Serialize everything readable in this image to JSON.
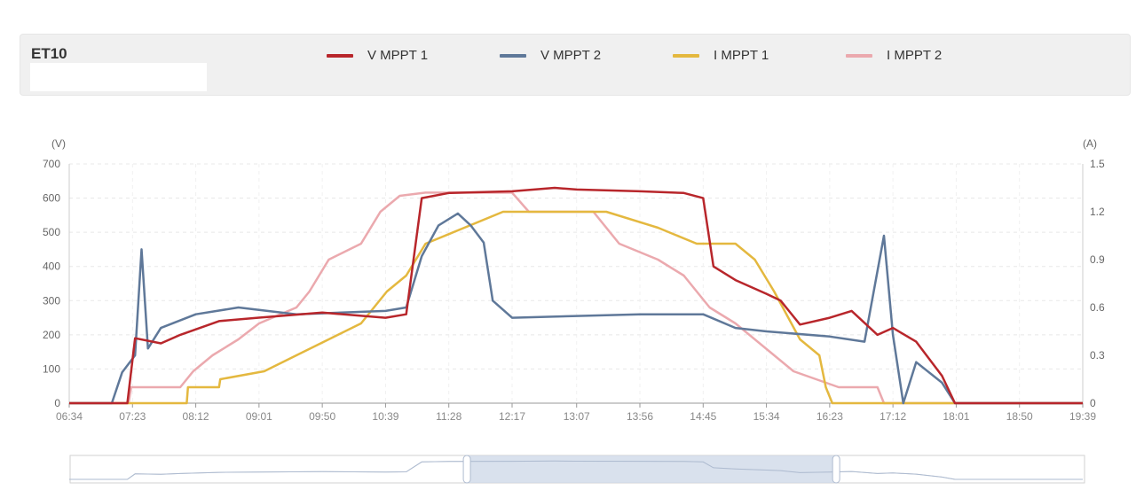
{
  "header": {
    "title": "ET10",
    "legend": [
      {
        "label": "V MPPT 1",
        "color": "#b8262b"
      },
      {
        "label": "V MPPT 2",
        "color": "#5f7899"
      },
      {
        "label": "I MPPT 1",
        "color": "#e4b83f"
      },
      {
        "label": "I MPPT 2",
        "color": "#eba9ae"
      }
    ]
  },
  "chart_data": {
    "type": "line",
    "x": [
      "06:34",
      "07:23",
      "08:12",
      "09:01",
      "09:50",
      "10:39",
      "11:28",
      "12:17",
      "13:07",
      "13:56",
      "14:45",
      "15:34",
      "16:23",
      "17:12",
      "18:01",
      "18:50",
      "19:39"
    ],
    "xlabel": "",
    "y_left": {
      "unit": "(V)",
      "ticks": [
        "0",
        "100",
        "200",
        "300",
        "400",
        "500",
        "600",
        "700"
      ],
      "range": [
        0,
        700
      ]
    },
    "y_right": {
      "unit": "(A)",
      "ticks": [
        "0",
        "0.3",
        "0.6",
        "0.9",
        "1.2",
        "1.5"
      ],
      "range": [
        0,
        1.5
      ]
    },
    "grid": true,
    "legend_position": "top",
    "series": [
      {
        "name": "V MPPT 1",
        "axis": "left",
        "color": "#b8262b",
        "points": [
          [
            "06:34",
            0
          ],
          [
            "07:19",
            0
          ],
          [
            "07:25",
            190
          ],
          [
            "07:45",
            175
          ],
          [
            "08:00",
            200
          ],
          [
            "08:30",
            240
          ],
          [
            "09:00",
            250
          ],
          [
            "09:50",
            265
          ],
          [
            "10:39",
            250
          ],
          [
            "10:55",
            260
          ],
          [
            "11:07",
            600
          ],
          [
            "11:28",
            615
          ],
          [
            "12:17",
            620
          ],
          [
            "12:50",
            630
          ],
          [
            "13:07",
            625
          ],
          [
            "13:56",
            620
          ],
          [
            "14:30",
            615
          ],
          [
            "14:45",
            600
          ],
          [
            "14:53",
            400
          ],
          [
            "15:10",
            360
          ],
          [
            "15:34",
            320
          ],
          [
            "15:45",
            300
          ],
          [
            "16:00",
            230
          ],
          [
            "16:23",
            250
          ],
          [
            "16:40",
            270
          ],
          [
            "17:00",
            200
          ],
          [
            "17:12",
            220
          ],
          [
            "17:30",
            180
          ],
          [
            "17:50",
            80
          ],
          [
            "18:00",
            0
          ],
          [
            "19:39",
            0
          ]
        ]
      },
      {
        "name": "V MPPT 2",
        "axis": "left",
        "color": "#5f7899",
        "points": [
          [
            "06:34",
            0
          ],
          [
            "07:07",
            0
          ],
          [
            "07:15",
            90
          ],
          [
            "07:25",
            140
          ],
          [
            "07:30",
            450
          ],
          [
            "07:35",
            160
          ],
          [
            "07:45",
            220
          ],
          [
            "08:12",
            260
          ],
          [
            "08:45",
            280
          ],
          [
            "09:30",
            260
          ],
          [
            "10:39",
            270
          ],
          [
            "10:55",
            280
          ],
          [
            "11:07",
            430
          ],
          [
            "11:20",
            520
          ],
          [
            "11:35",
            555
          ],
          [
            "11:45",
            520
          ],
          [
            "11:55",
            470
          ],
          [
            "12:02",
            300
          ],
          [
            "12:17",
            250
          ],
          [
            "13:07",
            255
          ],
          [
            "13:56",
            260
          ],
          [
            "14:45",
            260
          ],
          [
            "15:10",
            220
          ],
          [
            "15:34",
            210
          ],
          [
            "16:23",
            195
          ],
          [
            "16:50",
            180
          ],
          [
            "17:05",
            490
          ],
          [
            "17:12",
            200
          ],
          [
            "17:20",
            0
          ],
          [
            "17:30",
            120
          ],
          [
            "17:50",
            60
          ],
          [
            "18:00",
            0
          ],
          [
            "19:39",
            0
          ]
        ]
      },
      {
        "name": "I MPPT 1",
        "axis": "right",
        "color": "#e4b83f",
        "points": [
          [
            "06:34",
            0
          ],
          [
            "08:05",
            0
          ],
          [
            "08:06",
            0.1
          ],
          [
            "08:30",
            0.1
          ],
          [
            "08:31",
            0.15
          ],
          [
            "09:05",
            0.2
          ],
          [
            "09:30",
            0.3
          ],
          [
            "09:55",
            0.4
          ],
          [
            "10:20",
            0.5
          ],
          [
            "10:40",
            0.7
          ],
          [
            "10:55",
            0.8
          ],
          [
            "11:10",
            1.0
          ],
          [
            "11:40",
            1.1
          ],
          [
            "12:10",
            1.2
          ],
          [
            "13:20",
            1.2
          ],
          [
            "13:30",
            1.2
          ],
          [
            "14:10",
            1.1
          ],
          [
            "14:40",
            1.0
          ],
          [
            "15:10",
            1.0
          ],
          [
            "15:25",
            0.9
          ],
          [
            "15:40",
            0.7
          ],
          [
            "16:00",
            0.4
          ],
          [
            "16:15",
            0.3
          ],
          [
            "16:20",
            0.1
          ],
          [
            "16:25",
            0
          ],
          [
            "19:39",
            0
          ]
        ]
      },
      {
        "name": "I MPPT 2",
        "axis": "right",
        "color": "#eba9ae",
        "points": [
          [
            "06:34",
            0
          ],
          [
            "07:20",
            0
          ],
          [
            "07:22",
            0.1
          ],
          [
            "08:00",
            0.1
          ],
          [
            "08:10",
            0.2
          ],
          [
            "08:25",
            0.3
          ],
          [
            "08:45",
            0.4
          ],
          [
            "09:01",
            0.5
          ],
          [
            "09:30",
            0.6
          ],
          [
            "09:40",
            0.7
          ],
          [
            "09:55",
            0.9
          ],
          [
            "10:20",
            1.0
          ],
          [
            "10:35",
            1.2
          ],
          [
            "10:50",
            1.3
          ],
          [
            "11:10",
            1.32
          ],
          [
            "12:17",
            1.32
          ],
          [
            "12:30",
            1.2
          ],
          [
            "13:20",
            1.2
          ],
          [
            "13:40",
            1.0
          ],
          [
            "14:10",
            0.9
          ],
          [
            "14:30",
            0.8
          ],
          [
            "14:50",
            0.6
          ],
          [
            "15:10",
            0.5
          ],
          [
            "15:40",
            0.3
          ],
          [
            "15:55",
            0.2
          ],
          [
            "16:30",
            0.1
          ],
          [
            "17:00",
            0.1
          ],
          [
            "17:05",
            0
          ],
          [
            "19:39",
            0
          ]
        ]
      }
    ],
    "data_zoom": {
      "start": "11:42",
      "end": "16:28"
    }
  }
}
